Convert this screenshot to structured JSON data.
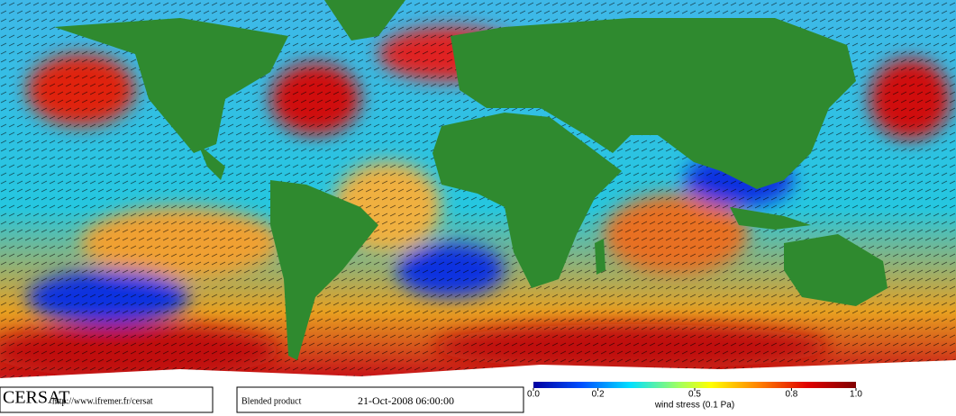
{
  "logo": "CERSAT",
  "url": "http://www.ifremer.fr/cersat",
  "product": "Blended product",
  "date": "21-Oct-2008 06:00:00",
  "colorbar": {
    "label": "wind stress (0.1 Pa)",
    "range": [
      0,
      1
    ],
    "ticks": [
      {
        "value": 0,
        "label": "0.0"
      },
      0.2,
      0.5,
      0.8,
      {
        "value": 1,
        "label": "1.0"
      }
    ]
  }
}
